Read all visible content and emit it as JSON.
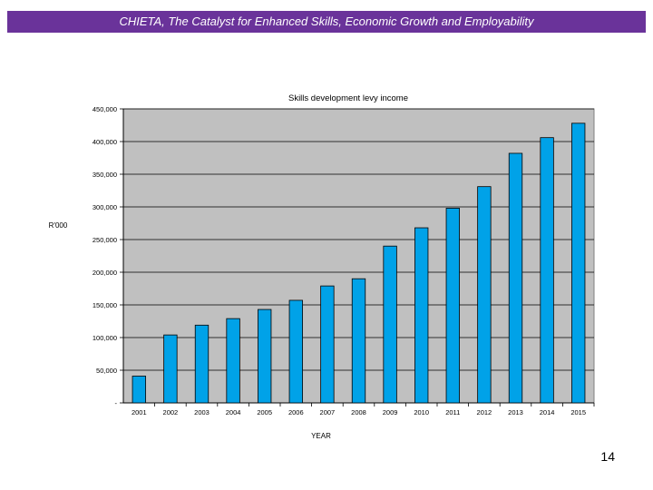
{
  "slide": {
    "banner_title": "CHIETA, The Catalyst for Enhanced Skills, Economic Growth and Employability",
    "page_number": "14"
  },
  "colors": {
    "banner_bg": "#6a339a",
    "plot_bg": "#c0c0c0",
    "bar_fill": "#00a2e8",
    "bar_stroke": "#000000"
  },
  "chart_data": {
    "type": "bar",
    "title": "Skills development levy income",
    "xlabel": "YEAR",
    "ylabel": "R'000",
    "categories": [
      "2001",
      "2002",
      "2003",
      "2004",
      "2005",
      "2006",
      "2007",
      "2008",
      "2009",
      "2010",
      "2011",
      "2012",
      "2013",
      "2014",
      "2015"
    ],
    "values": [
      41000,
      104000,
      119000,
      129000,
      143000,
      157000,
      179000,
      190000,
      240000,
      268000,
      298000,
      331000,
      382000,
      406000,
      428000
    ],
    "ylim": [
      0,
      450000
    ],
    "yticks": [
      0,
      50000,
      100000,
      150000,
      200000,
      250000,
      300000,
      350000,
      400000,
      450000
    ],
    "ytick_labels": [
      "-",
      "50,000",
      "100,000",
      "150,000",
      "200,000",
      "250,000",
      "300,000",
      "350,000",
      "400,000",
      "450,000"
    ],
    "grid": true,
    "legend": "none"
  }
}
